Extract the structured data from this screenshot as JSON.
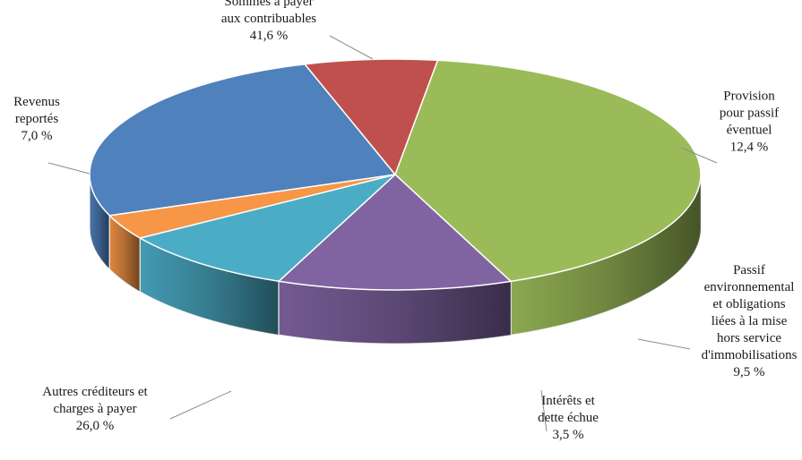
{
  "chart_data": {
    "type": "pie",
    "slices": [
      {
        "lines": [
          "Sommes à payer",
          "aux contribuables"
        ],
        "value_label": "41,6 %",
        "value": 41.6,
        "color": "#9BBB59"
      },
      {
        "lines": [
          "Provision",
          "pour passif",
          "éventuel"
        ],
        "value_label": "12,4 %",
        "value": 12.4,
        "color": "#8064A2"
      },
      {
        "lines": [
          "Passif",
          "environnemental",
          "et obligations",
          "liées à la mise",
          "hors service",
          "d'immobilisations"
        ],
        "value_label": "9,5 %",
        "value": 9.5,
        "color": "#4BACC6"
      },
      {
        "lines": [
          "Intérêts et",
          "dette échue"
        ],
        "value_label": "3,5 %",
        "value": 3.5,
        "color": "#F79646"
      },
      {
        "lines": [
          "Autres créditeurs et",
          "charges à payer"
        ],
        "value_label": "26,0 %",
        "value": 26.0,
        "color": "#4F81BD"
      },
      {
        "lines": [
          "Revenus",
          "reportés"
        ],
        "value_label": "7,0 %",
        "value": 7.0,
        "color": "#C0504D"
      }
    ]
  }
}
